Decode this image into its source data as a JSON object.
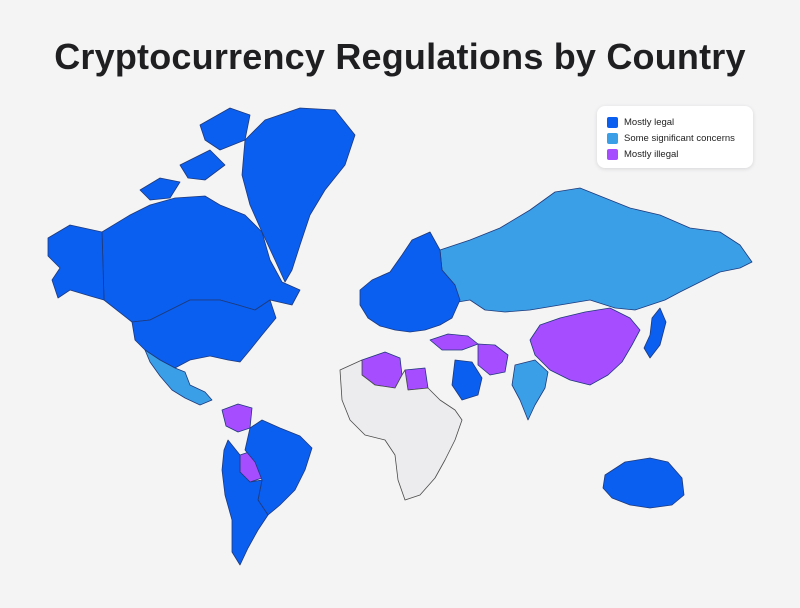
{
  "title": "Cryptocurrency Regulations by Country",
  "colors": {
    "legal": "#0a5ef0",
    "concerns": "#3b9fe8",
    "illegal": "#a64dff",
    "unclassified": "#ececee",
    "border": "#4a4a4a",
    "background": "#f4f4f5"
  },
  "legend": {
    "items": [
      {
        "label": "Mostly legal",
        "category": "legal"
      },
      {
        "label": "Some significant concerns",
        "category": "concerns"
      },
      {
        "label": "Mostly illegal",
        "category": "illegal"
      }
    ]
  },
  "regions": [
    {
      "name": "canada",
      "category": "legal"
    },
    {
      "name": "alaska",
      "category": "legal"
    },
    {
      "name": "greenland",
      "category": "legal"
    },
    {
      "name": "united-states",
      "category": "legal"
    },
    {
      "name": "mexico",
      "category": "concerns"
    },
    {
      "name": "venezuela",
      "category": "illegal"
    },
    {
      "name": "bolivia",
      "category": "illegal"
    },
    {
      "name": "brazil",
      "category": "legal"
    },
    {
      "name": "argentina",
      "category": "legal"
    },
    {
      "name": "russia",
      "category": "concerns"
    },
    {
      "name": "china",
      "category": "illegal"
    },
    {
      "name": "algeria",
      "category": "illegal"
    },
    {
      "name": "egypt",
      "category": "illegal"
    },
    {
      "name": "turkey",
      "category": "illegal"
    },
    {
      "name": "iran",
      "category": "illegal"
    },
    {
      "name": "india",
      "category": "concerns"
    },
    {
      "name": "saudi-arabia",
      "category": "legal"
    },
    {
      "name": "australia",
      "category": "legal"
    },
    {
      "name": "europe",
      "category": "legal"
    },
    {
      "name": "japan",
      "category": "legal"
    },
    {
      "name": "africa-rest",
      "category": "unclassified"
    }
  ]
}
